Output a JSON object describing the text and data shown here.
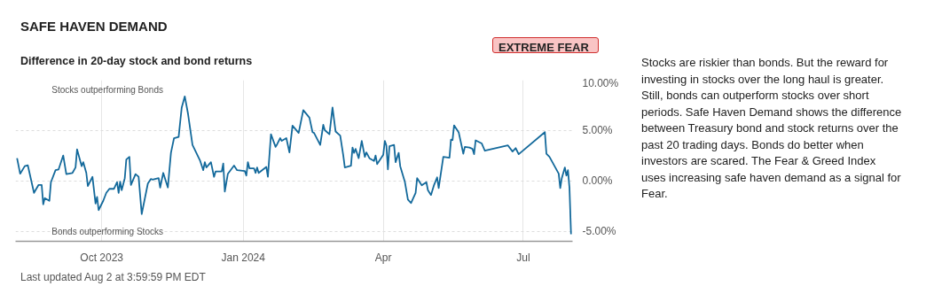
{
  "chart_data": {
    "type": "line",
    "title": "SAFE HAVEN DEMAND",
    "subtitle": "Difference in 20-day stock and bond returns",
    "annotations": [
      "Stocks outperforming Bonds",
      "Bonds outperforming Stocks",
      "EXTREME FEAR",
      "Stocks are riskier than bonds. But the reward for investing in stocks over the long haul is greater. Still, bonds can outperform stocks over short periods. Safe Haven Demand shows the difference between Treasury bond and stock returns over the past 20 trading days. Bonds do better when investors are scared. The Fear & Greed Index uses increasing safe haven demand as a signal for Fear.",
      "Last updated Aug 2 at 3:59:59 PM EDT"
    ],
    "x": [
      "2023-08-07",
      "2023-08-09",
      "2023-08-12",
      "2023-08-14",
      "2023-08-18",
      "2023-08-21",
      "2023-08-23",
      "2023-08-24",
      "2023-08-25",
      "2023-08-28",
      "2023-08-29",
      "2023-09-01",
      "2023-09-03",
      "2023-09-06",
      "2023-09-08",
      "2023-09-12",
      "2023-09-14",
      "2023-09-15",
      "2023-09-18",
      "2023-09-19",
      "2023-09-21",
      "2023-09-22",
      "2023-09-25",
      "2023-09-27",
      "2023-09-28",
      "2023-09-29",
      "2023-10-02",
      "2023-10-04",
      "2023-10-06",
      "2023-10-09",
      "2023-10-11",
      "2023-10-12",
      "2023-10-13",
      "2023-10-14",
      "2023-10-16",
      "2023-10-17",
      "2023-10-19",
      "2023-10-20",
      "2023-10-23",
      "2023-10-25",
      "2023-10-27",
      "2023-10-31",
      "2023-11-02",
      "2023-11-03",
      "2023-11-07",
      "2023-11-08",
      "2023-11-10",
      "2023-11-13",
      "2023-11-15",
      "2023-11-17",
      "2023-11-20",
      "2023-11-22",
      "2023-11-24",
      "2023-11-26",
      "2023-11-29",
      "2023-12-04",
      "2023-12-06",
      "2023-12-07",
      "2023-12-08",
      "2023-12-11",
      "2023-12-13",
      "2023-12-14",
      "2023-12-16",
      "2023-12-18",
      "2023-12-19",
      "2023-12-20",
      "2023-12-22",
      "2023-12-26",
      "2023-12-28",
      "2024-01-02",
      "2024-01-03",
      "2024-01-04",
      "2024-01-05",
      "2024-01-08",
      "2024-01-09",
      "2024-01-10",
      "2024-01-11",
      "2024-01-16",
      "2024-01-17",
      "2024-01-19",
      "2024-01-22",
      "2024-01-23",
      "2024-01-25",
      "2024-01-26",
      "2024-01-29",
      "2024-01-31",
      "2024-02-02",
      "2024-02-06",
      "2024-02-09",
      "2024-02-13",
      "2024-02-15",
      "2024-02-16",
      "2024-02-20",
      "2024-02-22",
      "2024-02-23",
      "2024-02-26",
      "2024-02-28",
      "2024-03-01",
      "2024-03-04",
      "2024-03-06",
      "2024-03-07",
      "2024-03-11",
      "2024-03-12",
      "2024-03-13",
      "2024-03-14",
      "2024-03-16",
      "2024-03-18",
      "2024-03-20",
      "2024-03-21",
      "2024-03-23",
      "2024-03-26",
      "2024-03-27",
      "2024-03-28",
      "2024-04-01",
      "2024-04-02",
      "2024-04-03",
      "2024-04-04",
      "2024-04-05",
      "2024-04-08",
      "2024-04-09",
      "2024-04-11",
      "2024-04-12",
      "2024-04-15",
      "2024-04-17",
      "2024-04-19",
      "2024-04-22",
      "2024-04-23",
      "2024-04-26",
      "2024-04-29",
      "2024-04-30",
      "2024-05-02",
      "2024-05-04",
      "2024-05-06",
      "2024-05-07",
      "2024-05-10",
      "2024-05-14",
      "2024-05-15",
      "2024-05-16",
      "2024-05-17",
      "2024-05-20",
      "2024-05-23",
      "2024-05-24",
      "2024-05-27",
      "2024-05-29",
      "2024-05-30",
      "2024-05-31",
      "2024-06-04",
      "2024-06-06",
      "2024-06-21",
      "2024-06-24",
      "2024-06-26",
      "2024-06-28",
      "2024-07-15",
      "2024-07-16",
      "2024-07-18",
      "2024-07-24",
      "2024-07-25",
      "2024-07-26",
      "2024-07-28",
      "2024-07-29",
      "2024-07-30",
      "2024-07-31",
      "2024-08-01"
    ],
    "series": [
      {
        "color": "#13699b",
        "values": [
          2.25,
          0.71,
          1.46,
          1.54,
          -1.19,
          -0.4,
          -0.4,
          -2.33,
          -1.71,
          -1.98,
          -0.13,
          1.06,
          1.14,
          2.52,
          0.67,
          0.79,
          1.33,
          3.13,
          1.46,
          1.86,
          0.79,
          -0.52,
          0.4,
          -2.25,
          -1.59,
          -2.9,
          -1.98,
          -1.19,
          -0.79,
          -0.79,
          -0.13,
          -1.19,
          -0.08,
          -0.92,
          0.27,
          2.12,
          2.38,
          -0.4,
          0.67,
          0.4,
          -3.3,
          -0.26,
          0.19,
          0.13,
          0.27,
          -0.66,
          0.79,
          -0.66,
          2.78,
          4.24,
          4.37,
          7.28,
          8.39,
          6.75,
          3.57,
          1.98,
          1.06,
          1.86,
          1.33,
          1.86,
          0.4,
          0.93,
          0.93,
          0.93,
          1.72,
          -1.06,
          0.71,
          1.51,
          1.06,
          0.98,
          0.53,
          1.86,
          1.25,
          1.25,
          0.79,
          1.33,
          0.79,
          1.38,
          0.4,
          4.63,
          3.37,
          3.63,
          4.24,
          3.97,
          4.24,
          2.83,
          5.48,
          4.76,
          7.02,
          6.27,
          4.84,
          4.76,
          3.57,
          5.56,
          5.03,
          4.63,
          7.28,
          4.9,
          4.5,
          2.52,
          1.33,
          1.51,
          3.31,
          2.78,
          3.17,
          2.25,
          3.97,
          2.38,
          2.83,
          2.25,
          1.98,
          2.52,
          1.67,
          2.6,
          3.97,
          3.52,
          1.14,
          3.44,
          3.57,
          1.86,
          2.78,
          1.46,
          -0.08,
          -1.85,
          -2.2,
          -1.19,
          0.27,
          -0.44,
          -0.13,
          -0.92,
          -1.4,
          -0.4,
          0.35,
          -0.71,
          2.38,
          2.3,
          4.1,
          4.05,
          5.51,
          4.82,
          2.7,
          3.37,
          3.31,
          3.17,
          2.65,
          4.02,
          3.71,
          2.99,
          3.52,
          2.91,
          3.25,
          2.65,
          4.84,
          2.7,
          2.38,
          0.71,
          -0.71,
          0.27,
          1.33,
          0.53,
          1.06,
          -0.71,
          -5.29
        ]
      }
    ],
    "xlim": [
      "2023-08-06",
      "2024-08-02"
    ],
    "xticks": [
      {
        "value": "2023-10-01",
        "label": "Oct 2023"
      },
      {
        "value": "2024-01-01",
        "label": "Jan 2024"
      },
      {
        "value": "2024-04-01",
        "label": "Apr"
      },
      {
        "value": "2024-07-01",
        "label": "Jul"
      }
    ],
    "ylim": [
      -6,
      10
    ],
    "yticks": [
      {
        "value": 10,
        "label": "10.00%"
      },
      {
        "value": 5,
        "label": "5.00%"
      },
      {
        "value": 0,
        "label": "0.00%"
      },
      {
        "value": -5,
        "label": "-5.00%"
      }
    ],
    "grid": true
  }
}
